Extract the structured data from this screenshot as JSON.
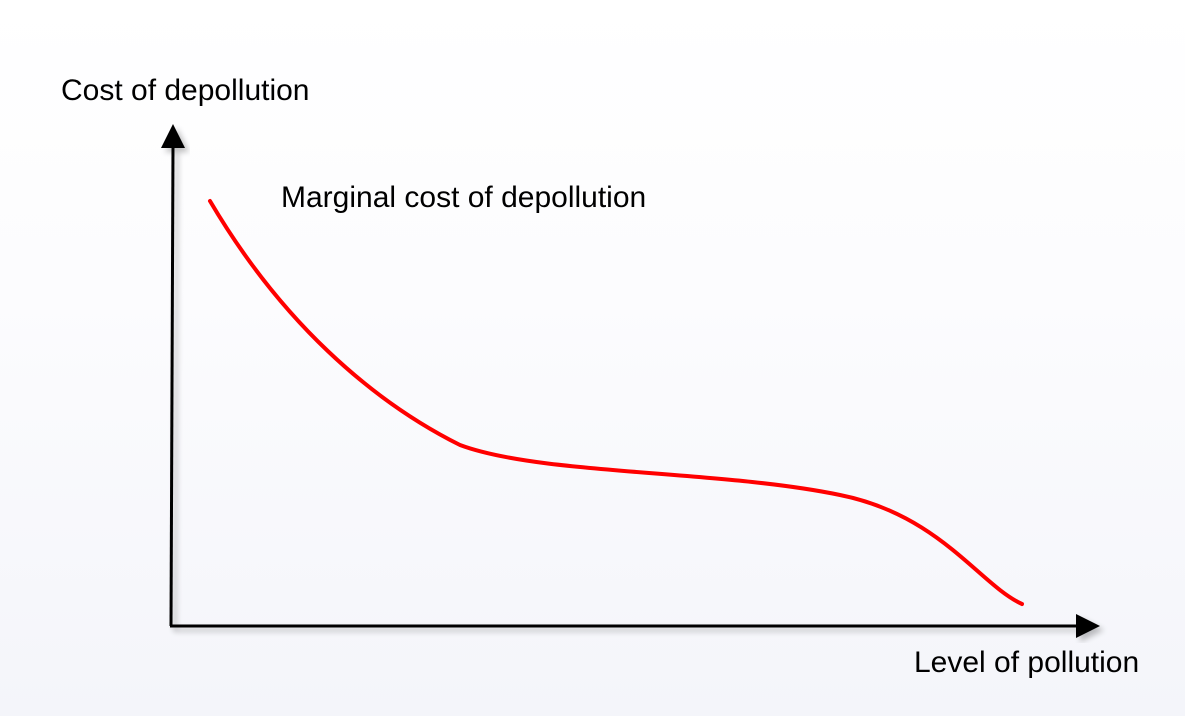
{
  "diagram": {
    "y_axis_label": "Cost of depollution",
    "x_axis_label": "Level of pollution",
    "curve_label": "Marginal cost of depollution",
    "colors": {
      "axis": "#000000",
      "curve": "#ff0000",
      "text": "#000000"
    }
  }
}
